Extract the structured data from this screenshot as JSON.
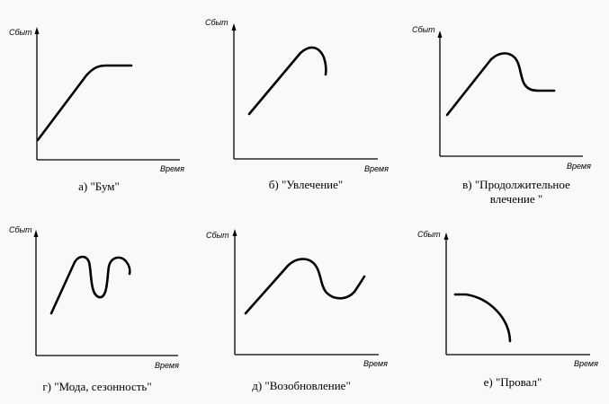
{
  "charts": [
    {
      "id": "a",
      "y_label": "Сбыт",
      "x_label": "Время",
      "caption_lines": [
        "а) \"Бум\""
      ]
    },
    {
      "id": "b",
      "y_label": "Сбыт",
      "x_label": "Время",
      "caption_lines": [
        "б) \"Увлечение\""
      ]
    },
    {
      "id": "c",
      "y_label": "Сбыт",
      "x_label": "Время",
      "caption_lines": [
        "в) \"Продолжительное",
        "влечение \""
      ]
    },
    {
      "id": "d",
      "y_label": "Сбыт",
      "x_label": "Время",
      "caption_lines": [
        "г) \"Мода, сезонность\""
      ]
    },
    {
      "id": "e",
      "y_label": "Сбыт",
      "x_label": "Время",
      "caption_lines": [
        "д) \"Возобновление\""
      ]
    },
    {
      "id": "f",
      "y_label": "Сбыт",
      "x_label": "Время",
      "caption_lines": [
        "е) \"Провал\""
      ]
    }
  ]
}
